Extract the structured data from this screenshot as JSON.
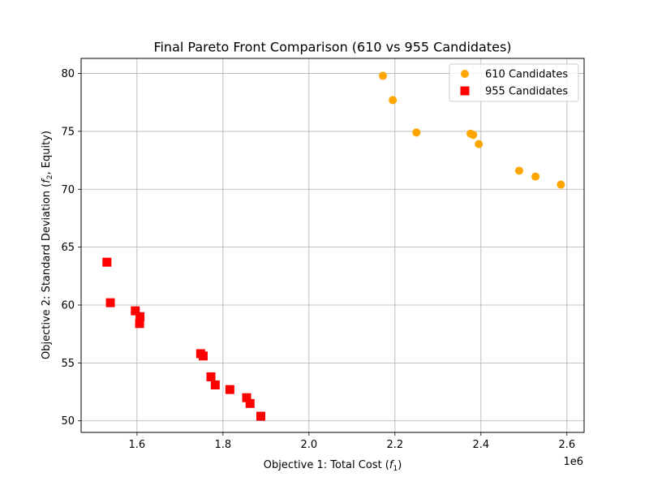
{
  "chart_data": {
    "type": "scatter",
    "title": "Final Pareto Front Comparison (610 vs 955 Candidates)",
    "xlabel": "Objective 1: Total Cost (",
    "xlabel_math_symbol": "f",
    "xlabel_math_sub": "1",
    "xlabel_suffix": ")",
    "ylabel": "Objective 2: Standard Deviation (",
    "ylabel_math_symbol": "f",
    "ylabel_math_sub": "2",
    "ylabel_suffix": ", Equity)",
    "x_offset_label": "1e6",
    "xlim": [
      1.47,
      2.64
    ],
    "ylim": [
      49.0,
      81.3
    ],
    "xticks": [
      1.6,
      1.8,
      2.0,
      2.2,
      2.4,
      2.6
    ],
    "xtick_labels": [
      "1.6",
      "1.8",
      "2.0",
      "2.2",
      "2.4",
      "2.6"
    ],
    "yticks": [
      50,
      55,
      60,
      65,
      70,
      75,
      80
    ],
    "ytick_labels": [
      "50",
      "55",
      "60",
      "65",
      "70",
      "75",
      "80"
    ],
    "grid": true,
    "legend_position": "top-right",
    "series": [
      {
        "name": "610 Candidates",
        "marker": "circle",
        "color": "#FFA500",
        "points": [
          [
            2.172,
            79.8
          ],
          [
            2.195,
            77.7
          ],
          [
            2.25,
            74.9
          ],
          [
            2.376,
            74.8
          ],
          [
            2.382,
            74.7
          ],
          [
            2.395,
            73.9
          ],
          [
            2.489,
            71.6
          ],
          [
            2.527,
            71.1
          ],
          [
            2.586,
            70.4
          ]
        ]
      },
      {
        "name": "955 Candidates",
        "marker": "square",
        "color": "#FF0000",
        "points": [
          [
            1.53,
            63.7
          ],
          [
            1.538,
            60.2
          ],
          [
            1.596,
            59.5
          ],
          [
            1.607,
            59.0
          ],
          [
            1.606,
            58.4
          ],
          [
            1.748,
            55.8
          ],
          [
            1.754,
            55.6
          ],
          [
            1.772,
            53.8
          ],
          [
            1.782,
            53.1
          ],
          [
            1.816,
            52.7
          ],
          [
            1.855,
            52.0
          ],
          [
            1.863,
            51.5
          ],
          [
            1.888,
            50.4
          ]
        ]
      }
    ]
  }
}
